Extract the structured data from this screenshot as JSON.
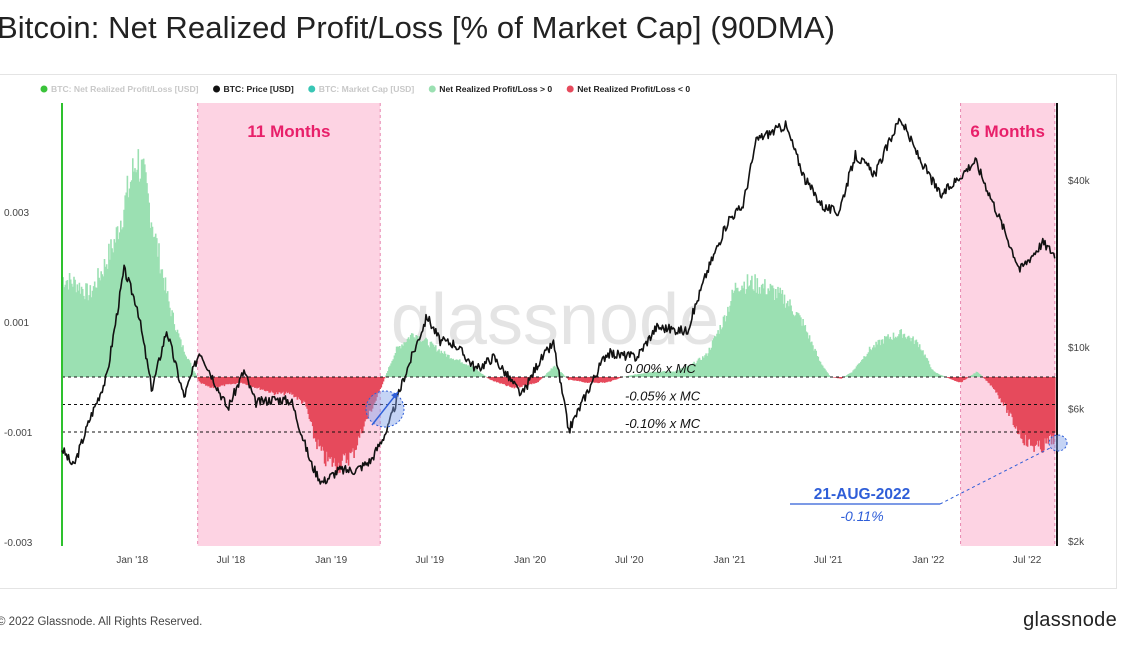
{
  "page": {
    "title": "Bitcoin: Net Realized Profit/Loss [% of Market Cap] (90DMA)",
    "copyright": "© 2022 Glassnode. All Rights Reserved.",
    "brand": "glassnode",
    "watermark": "glassnode"
  },
  "colors": {
    "positive": "#9be0b2",
    "negative": "#e64a5c",
    "price": "#111111",
    "highlight": "#fdd3e3",
    "highlight_border": "#e888b0",
    "highlight_text": "#e8206a",
    "annotation_blue": "#2f5ed8",
    "netrpl_legend": "#3ac33a",
    "marketcap_legend": "#39c6b5",
    "axis_left_line": "#2ec12e"
  },
  "chart_data": {
    "type": "area",
    "x_axis": {
      "type": "date",
      "range": [
        "2017-08-25",
        "2022-08-25"
      ],
      "ticks": [
        "Jan '18",
        "Jul '18",
        "Jan '19",
        "Jul '19",
        "Jan '20",
        "Jul '20",
        "Jan '21",
        "Jul '21",
        "Jan '22",
        "Jul '22"
      ],
      "tick_dates": [
        "2018-01-01",
        "2018-07-01",
        "2019-01-01",
        "2019-07-01",
        "2020-01-01",
        "2020-07-01",
        "2021-01-01",
        "2021-07-01",
        "2022-01-01",
        "2022-07-01"
      ]
    },
    "y_left": {
      "ticks": [
        "0.003",
        "0.001",
        "-0.001",
        "-0.003"
      ],
      "tick_values": [
        0.003,
        0.001,
        -0.001,
        -0.003
      ]
    },
    "y_right": {
      "scale": "log",
      "ticks": [
        "$40k",
        "$10k",
        "$6k",
        "$2k"
      ],
      "tick_values": [
        40000,
        10000,
        6000,
        2000
      ]
    },
    "legend": {
      "position": "top-left",
      "items": [
        {
          "label": "BTC: Net Realized Profit/Loss [USD]",
          "color": "#3ac33a",
          "muted": true
        },
        {
          "label": "BTC: Price [USD]",
          "color": "#111111",
          "muted": false
        },
        {
          "label": "BTC: Market Cap [USD]",
          "color": "#39c6b5",
          "muted": true
        },
        {
          "label": "Net Realized Profit/Loss > 0",
          "color": "#9be0b2",
          "muted": false
        },
        {
          "label": "Net Realized Profit/Loss < 0",
          "color": "#e64a5c",
          "muted": false
        }
      ]
    },
    "reference_lines": [
      {
        "value": 0.0,
        "label": "0.00% x MC"
      },
      {
        "value": -0.0005,
        "label": "-0.05% x MC"
      },
      {
        "value": -0.001,
        "label": "-0.10% x MC"
      }
    ],
    "highlight_regions": [
      {
        "start": "2018-05-01",
        "end": "2019-04-01",
        "label": "11 Months"
      },
      {
        "start": "2022-03-01",
        "end": "2022-08-21",
        "label": "6 Months"
      }
    ],
    "annotation": {
      "date": "21-AUG-2022",
      "value_text": "-0.11%",
      "value": -0.0011
    },
    "series": [
      {
        "name": "Net Realized Profit/Loss [% of Market Cap] (90DMA)",
        "points": [
          [
            "2017-08-25",
            0.0018
          ],
          [
            "2017-09-20",
            0.0017
          ],
          [
            "2017-10-15",
            0.0015
          ],
          [
            "2017-11-10",
            0.002
          ],
          [
            "2017-12-01",
            0.0025
          ],
          [
            "2017-12-25",
            0.0034
          ],
          [
            "2018-01-10",
            0.004
          ],
          [
            "2018-01-25",
            0.0035
          ],
          [
            "2018-02-15",
            0.0024
          ],
          [
            "2018-03-10",
            0.0013
          ],
          [
            "2018-04-01",
            0.0006
          ],
          [
            "2018-04-20",
            0.0002
          ],
          [
            "2018-05-05",
            -0.0001
          ],
          [
            "2018-05-25",
            -0.0002
          ],
          [
            "2018-06-20",
            -0.00015
          ],
          [
            "2018-07-20",
            -0.0001
          ],
          [
            "2018-08-20",
            -0.0002
          ],
          [
            "2018-09-20",
            -0.0003
          ],
          [
            "2018-10-20",
            -0.0003
          ],
          [
            "2018-11-15",
            -0.0005
          ],
          [
            "2018-12-01",
            -0.0011
          ],
          [
            "2018-12-20",
            -0.0015
          ],
          [
            "2019-01-15",
            -0.0016
          ],
          [
            "2019-02-10",
            -0.0014
          ],
          [
            "2019-03-01",
            -0.0009
          ],
          [
            "2019-03-25",
            -0.0004
          ],
          [
            "2019-04-10",
            0.0
          ],
          [
            "2019-05-01",
            0.0005
          ],
          [
            "2019-06-01",
            0.0008
          ],
          [
            "2019-07-01",
            0.0006
          ],
          [
            "2019-08-01",
            0.0004
          ],
          [
            "2019-09-15",
            0.0002
          ],
          [
            "2019-10-20",
            -5e-05
          ],
          [
            "2019-12-01",
            -0.0002
          ],
          [
            "2020-01-15",
            -0.0001
          ],
          [
            "2020-02-15",
            0.0002
          ],
          [
            "2020-03-12",
            -5e-05
          ],
          [
            "2020-04-15",
            -0.0001
          ],
          [
            "2020-05-20",
            -0.0001
          ],
          [
            "2020-06-20",
            0.0
          ],
          [
            "2020-07-15",
            5e-05
          ],
          [
            "2020-08-15",
            0.0001
          ],
          [
            "2020-09-20",
            0.0001
          ],
          [
            "2020-10-20",
            0.0002
          ],
          [
            "2020-11-20",
            0.0004
          ],
          [
            "2020-12-20",
            0.001
          ],
          [
            "2021-01-15",
            0.0017
          ],
          [
            "2021-02-15",
            0.0017
          ],
          [
            "2021-03-15",
            0.0016
          ],
          [
            "2021-04-15",
            0.0014
          ],
          [
            "2021-05-15",
            0.001
          ],
          [
            "2021-06-15",
            0.0003
          ],
          [
            "2021-07-05",
            0.0
          ],
          [
            "2021-07-25",
            -3e-05
          ],
          [
            "2021-08-15",
            0.0001
          ],
          [
            "2021-09-15",
            0.0005
          ],
          [
            "2021-10-15",
            0.0007
          ],
          [
            "2021-11-15",
            0.0008
          ],
          [
            "2021-12-15",
            0.0006
          ],
          [
            "2022-01-10",
            0.0001
          ],
          [
            "2022-02-01",
            0.0
          ],
          [
            "2022-03-01",
            -0.0001
          ],
          [
            "2022-04-01",
            0.0001
          ],
          [
            "2022-05-01",
            -0.0002
          ],
          [
            "2022-05-20",
            -0.0005
          ],
          [
            "2022-06-10",
            -0.0009
          ],
          [
            "2022-07-01",
            -0.0012
          ],
          [
            "2022-07-25",
            -0.0013
          ],
          [
            "2022-08-21",
            -0.0011
          ]
        ]
      },
      {
        "name": "BTC: Price [USD]",
        "axis": "right",
        "points": [
          [
            "2017-08-25",
            4300
          ],
          [
            "2017-09-15",
            3700
          ],
          [
            "2017-10-15",
            5500
          ],
          [
            "2017-11-15",
            7800
          ],
          [
            "2017-12-17",
            19000
          ],
          [
            "2018-01-10",
            14000
          ],
          [
            "2018-02-06",
            7000
          ],
          [
            "2018-03-05",
            11500
          ],
          [
            "2018-04-06",
            6600
          ],
          [
            "2018-05-05",
            9700
          ],
          [
            "2018-06-25",
            6000
          ],
          [
            "2018-07-25",
            8200
          ],
          [
            "2018-08-15",
            6300
          ],
          [
            "2018-09-20",
            6500
          ],
          [
            "2018-10-20",
            6400
          ],
          [
            "2018-11-25",
            3800
          ],
          [
            "2018-12-15",
            3250
          ],
          [
            "2019-01-15",
            3600
          ],
          [
            "2019-02-15",
            3600
          ],
          [
            "2019-03-15",
            3900
          ],
          [
            "2019-04-15",
            5100
          ],
          [
            "2019-05-15",
            7800
          ],
          [
            "2019-06-26",
            12900
          ],
          [
            "2019-07-20",
            10500
          ],
          [
            "2019-08-15",
            10300
          ],
          [
            "2019-09-25",
            8300
          ],
          [
            "2019-10-26",
            9200
          ],
          [
            "2019-12-17",
            6700
          ],
          [
            "2020-01-15",
            8700
          ],
          [
            "2020-02-13",
            10300
          ],
          [
            "2020-03-12",
            5000
          ],
          [
            "2020-04-15",
            6900
          ],
          [
            "2020-05-20",
            9500
          ],
          [
            "2020-07-15",
            9200
          ],
          [
            "2020-08-20",
            11800
          ],
          [
            "2020-10-15",
            11400
          ],
          [
            "2020-11-20",
            18500
          ],
          [
            "2020-12-31",
            29000
          ],
          [
            "2021-01-25",
            32000
          ],
          [
            "2021-02-20",
            56000
          ],
          [
            "2021-04-14",
            63000
          ],
          [
            "2021-05-20",
            40000
          ],
          [
            "2021-06-22",
            32000
          ],
          [
            "2021-07-20",
            30500
          ],
          [
            "2021-08-20",
            49000
          ],
          [
            "2021-09-25",
            42000
          ],
          [
            "2021-11-10",
            67000
          ],
          [
            "2021-12-15",
            48000
          ],
          [
            "2022-01-24",
            35000
          ],
          [
            "2022-03-28",
            47000
          ],
          [
            "2022-05-12",
            29000
          ],
          [
            "2022-06-18",
            19000
          ],
          [
            "2022-07-30",
            23800
          ],
          [
            "2022-08-21",
            21500
          ]
        ]
      }
    ]
  }
}
